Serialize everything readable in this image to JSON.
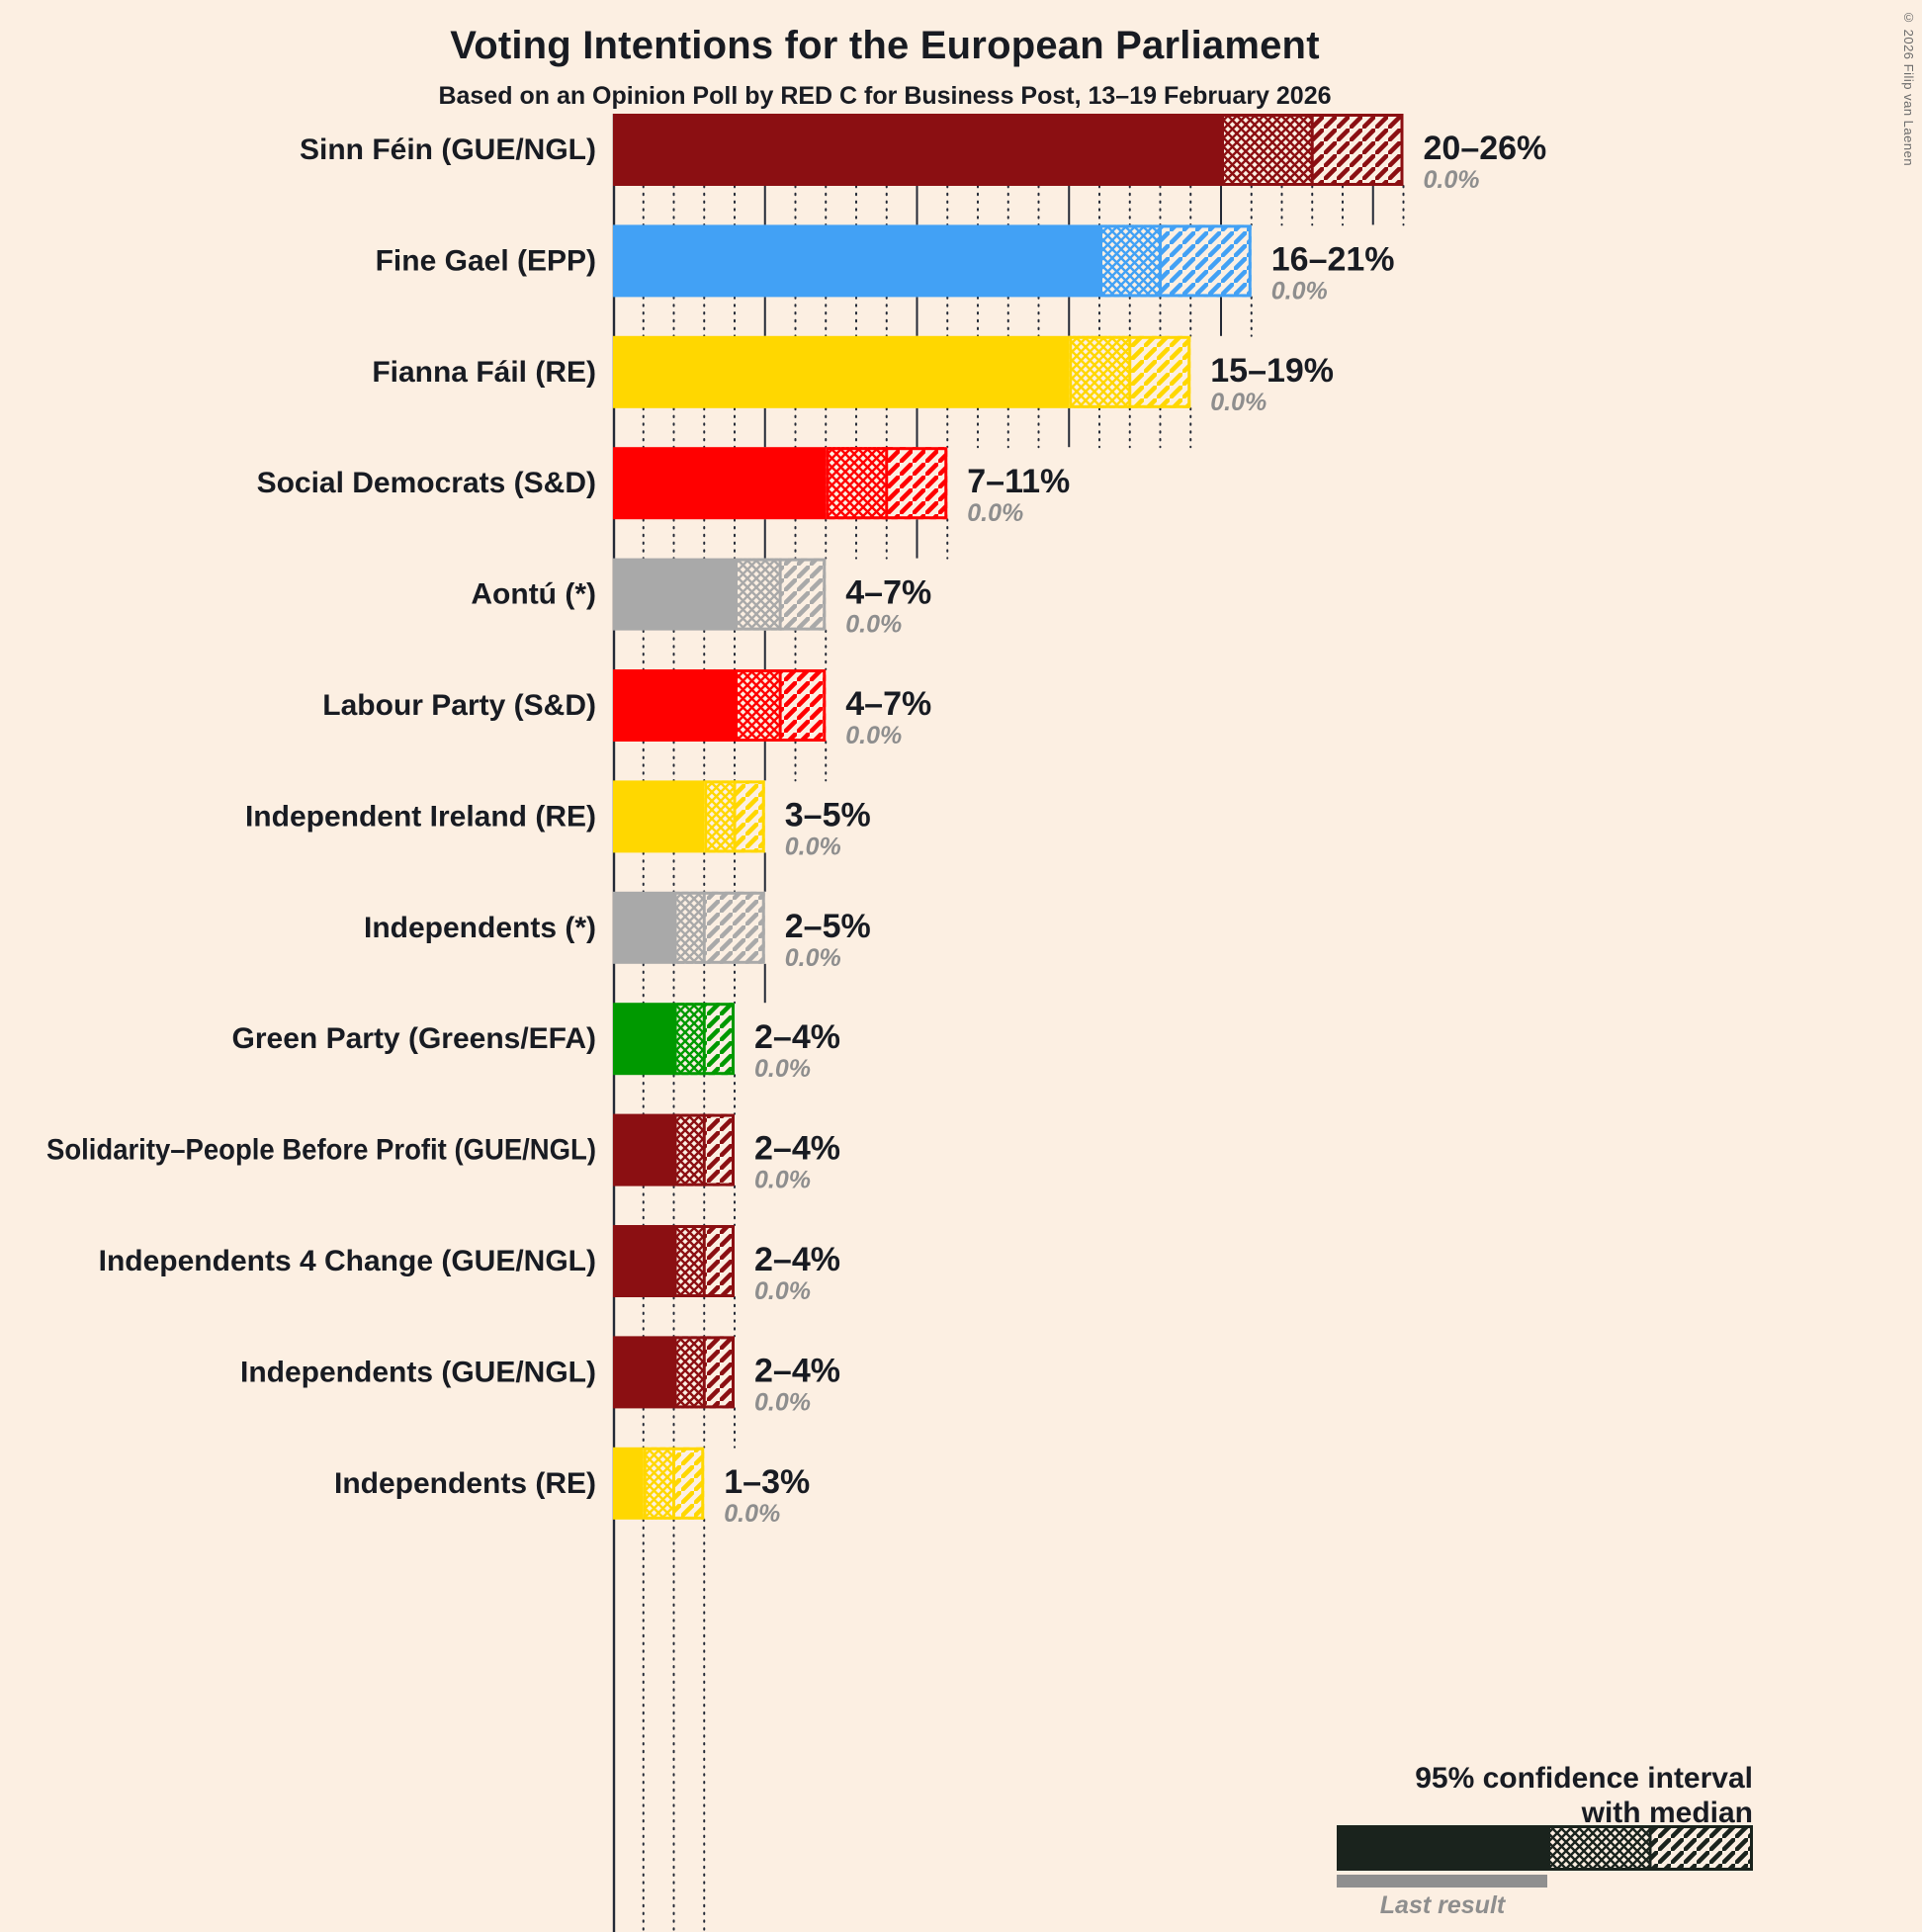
{
  "header": {
    "title": "Voting Intentions for the European Parliament",
    "subtitle": "Based on an Opinion Poll by RED C for Business Post, 13–19 February 2026"
  },
  "copyright": "© 2026 Filip van Laenen",
  "legend": {
    "line1": "95% confidence interval",
    "line2": "with median",
    "last_result": "Last result",
    "sample_color": "#1A231D",
    "last_result_color": "#8F8F8F"
  },
  "chart_data": {
    "type": "bar",
    "orientation": "horizontal",
    "title": "Voting Intentions for the European Parliament",
    "subtitle": "Based on an Opinion Poll by RED C for Business Post, 13–19 February 2026",
    "x_unit": "%",
    "x_minor_gridline_step": 1,
    "x_major_gridline_step": 5,
    "x_max": 26,
    "background": "#FCEFE2",
    "note": "bars show 95% confidence interval: solid to low, crosshatch low–median, diagonal hatch median–high",
    "parties": [
      {
        "label": "Sinn Féin (GUE/NGL)",
        "color": "#8B0F12",
        "low": 20,
        "median": 23,
        "high": 26,
        "ci_label": "20–26%",
        "last_result": 0.0,
        "last_result_label": "0.0%"
      },
      {
        "label": "Fine Gael (EPP)",
        "color": "#42A1F5",
        "low": 16,
        "median": 18,
        "high": 21,
        "ci_label": "16–21%",
        "last_result": 0.0,
        "last_result_label": "0.0%"
      },
      {
        "label": "Fianna Fáil (RE)",
        "color": "#FFD700",
        "low": 15,
        "median": 17,
        "high": 19,
        "ci_label": "15–19%",
        "last_result": 0.0,
        "last_result_label": "0.0%"
      },
      {
        "label": "Social Democrats (S&D)",
        "color": "#FF0000",
        "low": 7,
        "median": 9,
        "high": 11,
        "ci_label": "7–11%",
        "last_result": 0.0,
        "last_result_label": "0.0%"
      },
      {
        "label": "Aontú (*)",
        "color": "#A9A9A9",
        "low": 4,
        "median": 5.5,
        "high": 7,
        "ci_label": "4–7%",
        "last_result": 0.0,
        "last_result_label": "0.0%"
      },
      {
        "label": "Labour Party (S&D)",
        "color": "#FF0000",
        "low": 4,
        "median": 5.5,
        "high": 7,
        "ci_label": "4–7%",
        "last_result": 0.0,
        "last_result_label": "0.0%"
      },
      {
        "label": "Independent Ireland (RE)",
        "color": "#FFD700",
        "low": 3,
        "median": 4,
        "high": 5,
        "ci_label": "3–5%",
        "last_result": 0.0,
        "last_result_label": "0.0%"
      },
      {
        "label": "Independents (*)",
        "color": "#A9A9A9",
        "low": 2,
        "median": 3,
        "high": 5,
        "ci_label": "2–5%",
        "last_result": 0.0,
        "last_result_label": "0.0%"
      },
      {
        "label": "Green Party (Greens/EFA)",
        "color": "#009900",
        "low": 2,
        "median": 3,
        "high": 4,
        "ci_label": "2–4%",
        "last_result": 0.0,
        "last_result_label": "0.0%"
      },
      {
        "label": "Solidarity–People Before Profit (GUE/NGL)",
        "color": "#8B0F12",
        "low": 2,
        "median": 3,
        "high": 4,
        "ci_label": "2–4%",
        "last_result": 0.0,
        "last_result_label": "0.0%"
      },
      {
        "label": "Independents 4 Change (GUE/NGL)",
        "color": "#8B0F12",
        "low": 2,
        "median": 3,
        "high": 4,
        "ci_label": "2–4%",
        "last_result": 0.0,
        "last_result_label": "0.0%"
      },
      {
        "label": "Independents (GUE/NGL)",
        "color": "#8B0F12",
        "low": 2,
        "median": 3,
        "high": 4,
        "ci_label": "2–4%",
        "last_result": 0.0,
        "last_result_label": "0.0%"
      },
      {
        "label": "Independents (RE)",
        "color": "#FFD700",
        "low": 1,
        "median": 2,
        "high": 3,
        "ci_label": "1–3%",
        "last_result": 0.0,
        "last_result_label": "0.0%"
      }
    ]
  }
}
